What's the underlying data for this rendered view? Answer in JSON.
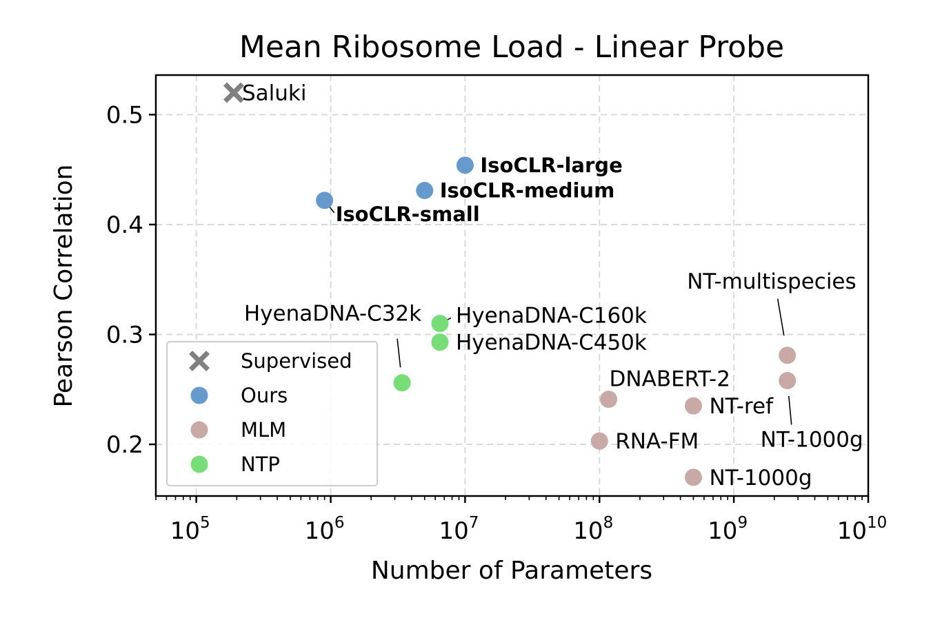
{
  "chart_data": {
    "type": "scatter",
    "title": "Mean Ribosome Load - Linear Probe",
    "xlabel": "Number of Parameters",
    "ylabel": "Pearson Correlation",
    "xscale": "log",
    "xlim": [
      50000,
      10000000000
    ],
    "ylim": [
      0.153,
      0.536
    ],
    "xticks": [
      {
        "value": 100000,
        "base": "10",
        "exp": "5"
      },
      {
        "value": 1000000,
        "base": "10",
        "exp": "6"
      },
      {
        "value": 10000000,
        "base": "10",
        "exp": "7"
      },
      {
        "value": 100000000,
        "base": "10",
        "exp": "8"
      },
      {
        "value": 1000000000,
        "base": "10",
        "exp": "9"
      },
      {
        "value": 10000000000,
        "base": "10",
        "exp": "10"
      }
    ],
    "yticks": [
      {
        "value": 0.2,
        "label": "0.2"
      },
      {
        "value": 0.3,
        "label": "0.3"
      },
      {
        "value": 0.4,
        "label": "0.4"
      },
      {
        "value": 0.5,
        "label": "0.5"
      }
    ],
    "grid": true,
    "legend_position": "lower-left",
    "legend": [
      {
        "name": "Supervised",
        "color": "#808080",
        "marker": "x"
      },
      {
        "name": "Ours",
        "color": "#6699cc",
        "marker": "o"
      },
      {
        "name": "MLM",
        "color": "#c9a9a6",
        "marker": "o"
      },
      {
        "name": "NTP",
        "color": "#77dd77",
        "marker": "o"
      }
    ],
    "points": [
      {
        "label": "Saluki",
        "group": "Supervised",
        "x": 190000,
        "y": 0.52,
        "bold": false,
        "anchor": "start",
        "lx": 12,
        "ly": 11,
        "leader": false
      },
      {
        "label": "IsoCLR-large",
        "group": "Ours",
        "x": 10000000,
        "y": 0.454,
        "bold": true,
        "anchor": "start",
        "lx": 22,
        "ly": 10,
        "leader": false
      },
      {
        "label": "IsoCLR-medium",
        "group": "Ours",
        "x": 5000000,
        "y": 0.431,
        "bold": true,
        "anchor": "start",
        "lx": 22,
        "ly": 10,
        "leader": false
      },
      {
        "label": "IsoCLR-small",
        "group": "Ours",
        "x": 900000,
        "y": 0.422,
        "bold": true,
        "anchor": "start",
        "lx": 16,
        "ly": 30,
        "leader": true,
        "lead_x": 14,
        "lead_y": 18
      },
      {
        "label": "HyenaDNA-C32k",
        "group": "NTP",
        "x": 3400000,
        "y": 0.256,
        "bold": false,
        "anchor": "end",
        "lx": 28,
        "ly": -90,
        "leader": true,
        "lead_x": -7,
        "lead_y": -64
      },
      {
        "label": "HyenaDNA-C160k",
        "group": "NTP",
        "x": 6500000,
        "y": 0.31,
        "bold": false,
        "anchor": "start",
        "lx": 23,
        "ly": -1,
        "leader": true,
        "lead_x": 16,
        "lead_y": -8
      },
      {
        "label": "HyenaDNA-C450k",
        "group": "NTP",
        "x": 6500000,
        "y": 0.293,
        "bold": false,
        "anchor": "start",
        "lx": 23,
        "ly": 11,
        "leader": false
      },
      {
        "label": "NT-multispecies",
        "group": "MLM",
        "x": 2500000000,
        "y": 0.281,
        "bold": false,
        "anchor": "end",
        "lx": 100,
        "ly": -97,
        "leader": true,
        "lead_x": -14,
        "lead_y": -82
      },
      {
        "label": "NT-1000g",
        "group": "MLM",
        "x": 2500000000,
        "y": 0.258,
        "bold": false,
        "anchor": "end",
        "lx": 110,
        "ly": 96,
        "leader": true,
        "lead_x": 6,
        "lead_y": 64
      },
      {
        "label": "DNABERT-2",
        "group": "MLM",
        "x": 117000000,
        "y": 0.241,
        "bold": false,
        "anchor": "start",
        "lx": 1,
        "ly": -19,
        "leader": false
      },
      {
        "label": "NT-ref",
        "group": "MLM",
        "x": 500000000,
        "y": 0.235,
        "bold": false,
        "anchor": "start",
        "lx": 23,
        "ly": 11,
        "leader": false
      },
      {
        "label": "RNA-FM",
        "group": "MLM",
        "x": 100000000,
        "y": 0.203,
        "bold": false,
        "anchor": "start",
        "lx": 23,
        "ly": 11,
        "leader": false
      },
      {
        "label": "NT-1000g",
        "group": "MLM",
        "x": 500000000,
        "y": 0.17,
        "bold": false,
        "anchor": "start",
        "lx": 23,
        "ly": 11,
        "leader": false
      }
    ]
  }
}
